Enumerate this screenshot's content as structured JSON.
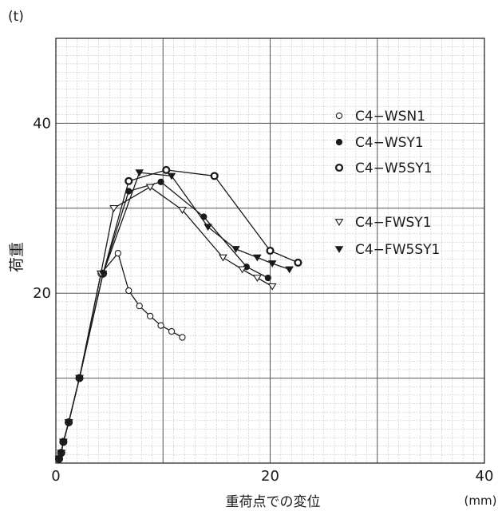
{
  "chart_data": {
    "type": "line",
    "y_unit": "(t)",
    "ylabel": "荷重",
    "xlabel": "重荷点での変位",
    "x_unit": "(mm)",
    "xlim": [
      0,
      40
    ],
    "ylim": [
      0,
      50
    ],
    "x_ticks": [
      "0",
      "20",
      "40"
    ],
    "x_tick_values": [
      0,
      20,
      40
    ],
    "y_ticks": [
      "20",
      "40"
    ],
    "y_tick_values": [
      20,
      40
    ],
    "grid": true,
    "legend_position": "right",
    "series": [
      {
        "name": "C4−WSN1",
        "marker": "circle-open",
        "color": "#1a1a1a",
        "x": [
          0.3,
          0.5,
          0.7,
          1.2,
          2.2,
          4.2,
          5.8,
          6.8,
          7.8,
          8.8,
          9.8,
          10.8,
          11.8
        ],
        "y": [
          0.5,
          1.2,
          2.5,
          4.8,
          10.0,
          22.3,
          24.7,
          20.3,
          18.5,
          17.3,
          16.2,
          15.5,
          14.8
        ]
      },
      {
        "name": "C4−WSY1",
        "marker": "circle-filled",
        "color": "#1a1a1a",
        "x": [
          0.3,
          0.5,
          0.7,
          1.2,
          2.2,
          4.4,
          6.8,
          9.8,
          13.8,
          17.8,
          19.8
        ],
        "y": [
          0.5,
          1.2,
          2.5,
          4.8,
          10.0,
          22.3,
          32.0,
          33.1,
          29.0,
          23.1,
          21.8
        ]
      },
      {
        "name": "C4−W5SY1",
        "marker": "circle-bold",
        "color": "#1a1a1a",
        "x": [
          0.3,
          0.5,
          0.7,
          1.2,
          2.2,
          4.4,
          6.8,
          10.3,
          14.8,
          20.0,
          22.6
        ],
        "y": [
          0.5,
          1.2,
          2.5,
          4.8,
          10.0,
          22.3,
          33.2,
          34.5,
          33.8,
          25.0,
          23.6
        ]
      },
      {
        "name": "C4−FWSY1",
        "marker": "triangle-down-open",
        "color": "#1a1a1a",
        "x": [
          0.3,
          0.5,
          0.7,
          1.2,
          2.2,
          4.2,
          5.4,
          8.8,
          11.8,
          15.6,
          17.4,
          18.8,
          20.2
        ],
        "y": [
          0.5,
          1.2,
          2.5,
          4.8,
          10.0,
          22.3,
          30.0,
          32.5,
          29.8,
          24.2,
          22.8,
          21.8,
          20.8
        ]
      },
      {
        "name": "C4−FW5SY1",
        "marker": "triangle-down-filled",
        "color": "#1a1a1a",
        "x": [
          0.3,
          0.5,
          0.7,
          1.2,
          2.2,
          4.4,
          7.8,
          10.8,
          14.2,
          16.8,
          18.8,
          20.2,
          21.8
        ],
        "y": [
          0.5,
          1.2,
          2.5,
          4.8,
          10.0,
          22.3,
          34.2,
          33.8,
          27.8,
          25.2,
          24.2,
          23.5,
          22.8
        ]
      }
    ]
  }
}
